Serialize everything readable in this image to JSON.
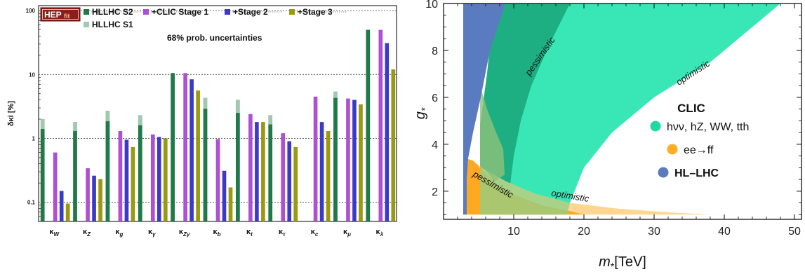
{
  "chart_data": [
    {
      "type": "bar",
      "logo": {
        "main": "HEP",
        "sub": "fit"
      },
      "ylabel": "δκi [%]",
      "annotation": "68% prob. uncertainties",
      "yscale": "log",
      "ylim": [
        0.05,
        120
      ],
      "yticks": [
        {
          "v": 0.1,
          "label": "0.1"
        },
        {
          "v": 1,
          "label": "1"
        },
        {
          "v": 10,
          "label": "10"
        },
        {
          "v": 100,
          "label": "100"
        }
      ],
      "categories": [
        "κW",
        "κZ",
        "κg",
        "κγ",
        "κZγ",
        "κb",
        "κt",
        "κτ",
        "κc",
        "κμ",
        "κλ"
      ],
      "series": [
        {
          "name": "HLLHC S1",
          "color": "#9fc9b1",
          "values": [
            2.0,
            1.8,
            2.7,
            2.3,
            10.5,
            4.3,
            4.0,
            2.3,
            null,
            5.4,
            50
          ]
        },
        {
          "name": "HLLHC S2",
          "color": "#1f7a4a",
          "values": [
            1.4,
            1.3,
            1.85,
            1.6,
            10.5,
            2.9,
            2.5,
            1.65,
            null,
            4.3,
            50
          ]
        },
        {
          "name": "+CLIC Stage 1",
          "color": "#b04fd6",
          "values": [
            0.6,
            0.34,
            1.3,
            1.15,
            10.5,
            0.97,
            2.4,
            1.2,
            4.5,
            4.2,
            50
          ]
        },
        {
          "name": "+Stage 2",
          "color": "#3a39c9",
          "values": [
            0.15,
            0.26,
            0.95,
            1.05,
            8.4,
            0.31,
            1.8,
            0.9,
            1.8,
            4.0,
            31
          ]
        },
        {
          "name": "+Stage 3",
          "color": "#9a9a0c",
          "values": [
            0.095,
            0.23,
            0.73,
            1.0,
            5.6,
            0.17,
            1.8,
            0.73,
            1.3,
            3.4,
            12
          ]
        }
      ]
    },
    {
      "type": "area",
      "xlabel": "m*[TeV]",
      "ylabel": "g*",
      "xlim": [
        0,
        51
      ],
      "ylim": [
        0.8,
        10
      ],
      "xticks": [
        10,
        20,
        30,
        40,
        50
      ],
      "yticks": [
        2,
        4,
        6,
        8,
        10
      ],
      "legend_title": "CLIC",
      "legend": [
        {
          "name": "hνν, hZ, WW, tth",
          "color": "#1ed8a6"
        },
        {
          "name": "ee→ff",
          "color": "#ffae24"
        },
        {
          "name": "HL–LHC",
          "color": "#5b7bc1"
        }
      ],
      "labels": {
        "clic_pessimistic": "pessimistic",
        "clic_optimistic": "optimistic",
        "ee_pessimistic": "pessimistic",
        "ee_optimistic": "optimistic"
      },
      "regions": [
        {
          "id": "clic-optimistic",
          "color": "#2ee6b2",
          "opacity": 0.95,
          "points": [
            [
              5.2,
              1.0
            ],
            [
              5.2,
              4.8
            ],
            [
              6.2,
              7.0
            ],
            [
              7.2,
              10.0
            ],
            [
              48,
              10.0
            ],
            [
              44,
              9.0
            ],
            [
              38,
              7.5
            ],
            [
              30,
              6.0
            ],
            [
              24,
              4.5
            ],
            [
              20,
              3.0
            ],
            [
              18,
              1.5
            ],
            [
              17.5,
              1.0
            ]
          ]
        },
        {
          "id": "clic-pessimistic",
          "color": "#19a478",
          "opacity": 0.85,
          "points": [
            [
              5.2,
              1.0
            ],
            [
              5.2,
              4.8
            ],
            [
              6.2,
              7.0
            ],
            [
              7.2,
              10.0
            ],
            [
              18,
              10.0
            ],
            [
              15,
              8.2
            ],
            [
              12.5,
              6.5
            ],
            [
              11,
              5.0
            ],
            [
              10,
              3.5
            ],
            [
              9.5,
              2.3
            ],
            [
              9.3,
              1.0
            ]
          ]
        },
        {
          "id": "ee-optimistic",
          "color": "#ffd48a",
          "opacity": 0.95,
          "points": [
            [
              3.2,
              1.0
            ],
            [
              3.2,
              3.4
            ],
            [
              4.2,
              3.3
            ],
            [
              6,
              2.9
            ],
            [
              9,
              2.4
            ],
            [
              13,
              1.9
            ],
            [
              18,
              1.5
            ],
            [
              25,
              1.25
            ],
            [
              32,
              1.1
            ],
            [
              38,
              1.0
            ]
          ]
        },
        {
          "id": "ee-pessimistic",
          "color": "#ffa61e",
          "opacity": 0.95,
          "points": [
            [
              3.2,
              1.0
            ],
            [
              3.2,
              3.4
            ],
            [
              4.2,
              3.3
            ],
            [
              5.5,
              2.9
            ],
            [
              7.5,
              2.3
            ],
            [
              10.5,
              1.8
            ],
            [
              14,
              1.4
            ],
            [
              18,
              1.15
            ],
            [
              20,
              1.0
            ]
          ]
        },
        {
          "id": "overlap-clic-ee",
          "color": "#8ed08a",
          "opacity": 0.75,
          "points": [
            [
              5.2,
              1.0
            ],
            [
              5.2,
              2.9
            ],
            [
              6,
              2.9
            ],
            [
              9,
              2.4
            ],
            [
              13,
              1.9
            ],
            [
              18,
              1.5
            ],
            [
              17.6,
              1.0
            ]
          ]
        },
        {
          "id": "overlap-hllhc",
          "color": "#8fc07a",
          "opacity": 0.8,
          "points": [
            [
              5.2,
              2.95
            ],
            [
              5.2,
              6.5
            ],
            [
              6.2,
              5.5
            ],
            [
              7.5,
              4.5
            ],
            [
              8.5,
              3.8
            ],
            [
              8.7,
              2.7
            ],
            [
              7.2,
              2.4
            ],
            [
              6,
              2.9
            ]
          ]
        },
        {
          "id": "hl-lhc",
          "color": "#5b7bc1",
          "opacity": 1.0,
          "points": [
            [
              2.8,
              1.0
            ],
            [
              2.8,
              10.0
            ],
            [
              8.8,
              10.0
            ],
            [
              6.6,
              8.0
            ],
            [
              5.3,
              6.0
            ],
            [
              4.2,
              4.5
            ],
            [
              3.5,
              3.4
            ],
            [
              3.3,
              2.5
            ],
            [
              3.3,
              1.0
            ]
          ]
        }
      ]
    }
  ]
}
